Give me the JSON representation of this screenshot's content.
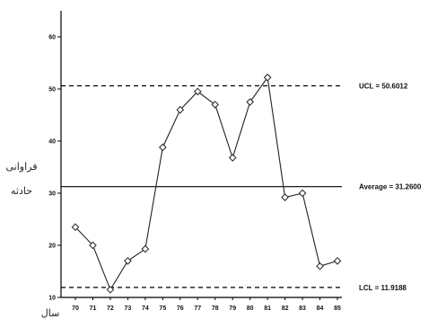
{
  "chart_data": {
    "type": "line",
    "title": "",
    "xlabel": "سال",
    "ylabel": [
      "فراوانی",
      "حادثه"
    ],
    "x": [
      "70",
      "71",
      "72",
      "73",
      "74",
      "75",
      "76",
      "77",
      "78",
      "79",
      "80",
      "81",
      "82",
      "83",
      "84",
      "85"
    ],
    "y_ticks": [
      "10",
      "20",
      "30",
      "40",
      "50",
      "60"
    ],
    "ylim": [
      10,
      65
    ],
    "series": [
      {
        "values": [
          23.5,
          20,
          11.5,
          17,
          19.3,
          38.8,
          46,
          49.5,
          47,
          36.8,
          47.5,
          52.2,
          29.2,
          30,
          16,
          17
        ]
      }
    ],
    "reference_lines": [
      {
        "label": "UCL = 50.6012",
        "value": 50.6012,
        "style": "dashed"
      },
      {
        "label": "Average = 31.2600",
        "value": 31.26,
        "style": "solid"
      },
      {
        "label": "LCL = 11.9188",
        "value": 11.9188,
        "style": "dashed"
      }
    ],
    "grid": false,
    "legend": "none"
  }
}
